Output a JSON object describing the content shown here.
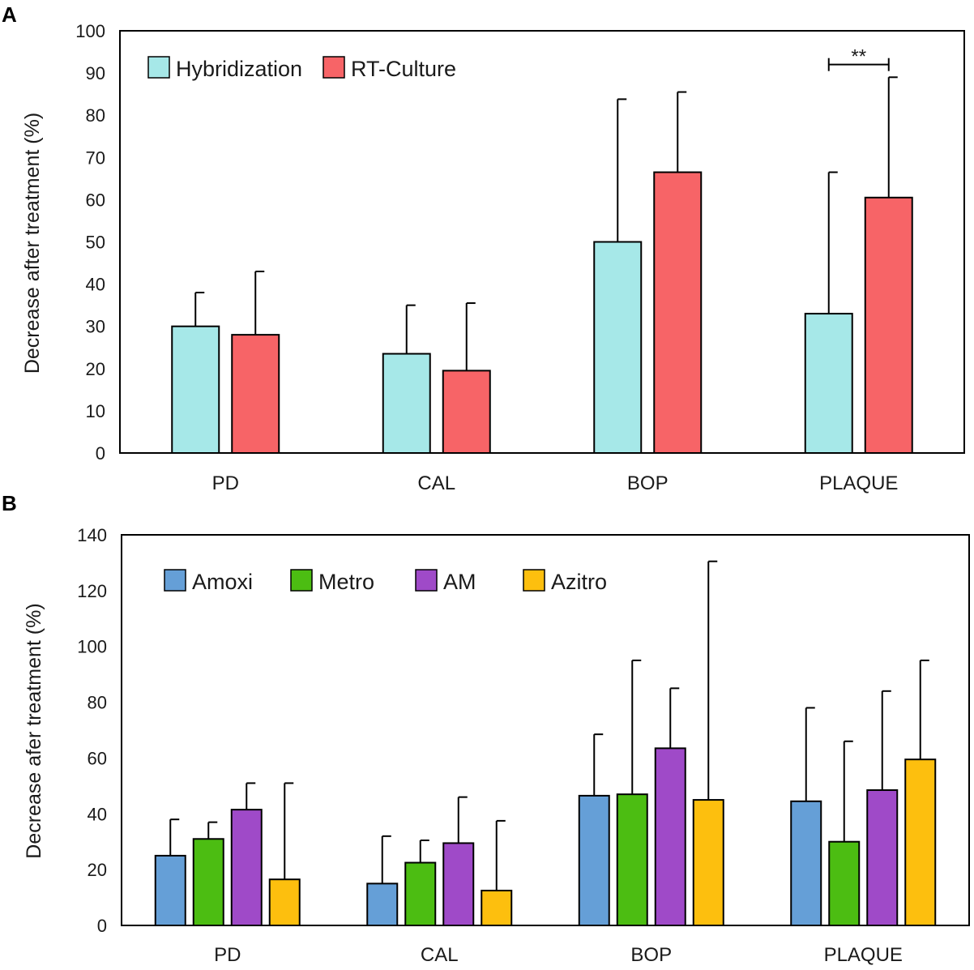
{
  "chart_data": [
    {
      "panel": "A",
      "type": "bar",
      "title": "",
      "xlabel": "",
      "ylabel": "Decrease after treatment (%)",
      "ylim": [
        0,
        100
      ],
      "yticks": [
        0,
        10,
        20,
        30,
        40,
        50,
        60,
        70,
        80,
        90,
        100
      ],
      "grid": false,
      "legend": "top-left",
      "categories": [
        "PD",
        "CAL",
        "BOP",
        "PLAQUE"
      ],
      "series": [
        {
          "name": "Hybridization",
          "color": "#a6e8e8",
          "values": [
            30,
            23.5,
            50,
            33
          ],
          "errors": [
            8,
            11.5,
            33.8,
            33.5
          ]
        },
        {
          "name": "RT-Culture",
          "color": "#f76467",
          "values": [
            28,
            19.5,
            66.5,
            60.5
          ],
          "errors": [
            15,
            16,
            19,
            28.5
          ]
        }
      ],
      "annotations": [
        {
          "text": "**",
          "category": "PLAQUE",
          "y": 92
        }
      ]
    },
    {
      "panel": "B",
      "type": "bar",
      "title": "",
      "xlabel": "",
      "ylabel": "Decrease afer treatment (%)",
      "ylim": [
        0,
        140
      ],
      "yticks": [
        0,
        20,
        40,
        60,
        80,
        100,
        120,
        140
      ],
      "grid": false,
      "legend": "top-left",
      "categories": [
        "PD",
        "CAL",
        "BOP",
        "PLAQUE"
      ],
      "series": [
        {
          "name": "Amoxi",
          "color": "#659fd7",
          "values": [
            25,
            15,
            46.5,
            44.5
          ],
          "errors": [
            13,
            17,
            22,
            33.5
          ]
        },
        {
          "name": "Metro",
          "color": "#4cbd12",
          "values": [
            31,
            22.5,
            47,
            30
          ],
          "errors": [
            6,
            8,
            48,
            36
          ]
        },
        {
          "name": "AM",
          "color": "#9f4ac8",
          "values": [
            41.5,
            29.5,
            63.5,
            48.5
          ],
          "errors": [
            9.5,
            16.5,
            21.5,
            35.5
          ]
        },
        {
          "name": "Azitro",
          "color": "#fdbf0e",
          "values": [
            16.5,
            12.5,
            45,
            59.5
          ],
          "errors": [
            34.5,
            25,
            85.5,
            35.5
          ]
        }
      ]
    }
  ]
}
